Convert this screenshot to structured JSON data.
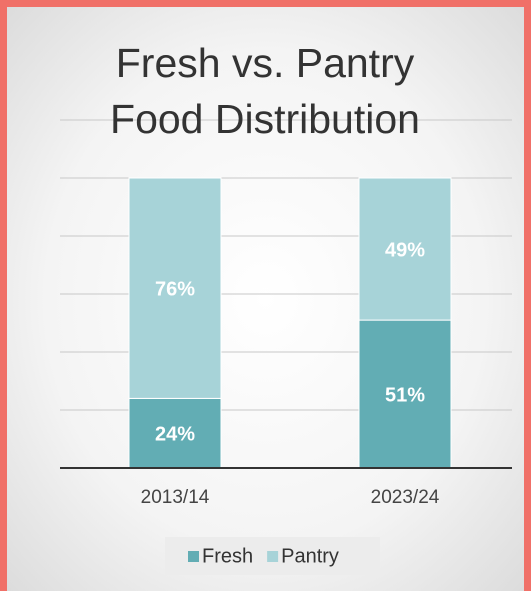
{
  "chart_data": {
    "type": "stacked_bar",
    "title": "Fresh vs. Pantry Food Distribution",
    "categories": [
      "2013/14",
      "2023/24"
    ],
    "series": [
      {
        "name": "Fresh",
        "color": "#62adb4",
        "values": [
          24,
          51
        ],
        "value_labels": [
          "24%",
          "51%"
        ]
      },
      {
        "name": "Pantry",
        "color": "#a7d3d8",
        "values": [
          76,
          49
        ],
        "value_labels": [
          "76%",
          "49%"
        ]
      }
    ],
    "ylim": [
      0,
      120
    ],
    "yticks": [
      0,
      20,
      40,
      60,
      80,
      100,
      120
    ],
    "grid": true,
    "legend": "bottom"
  }
}
